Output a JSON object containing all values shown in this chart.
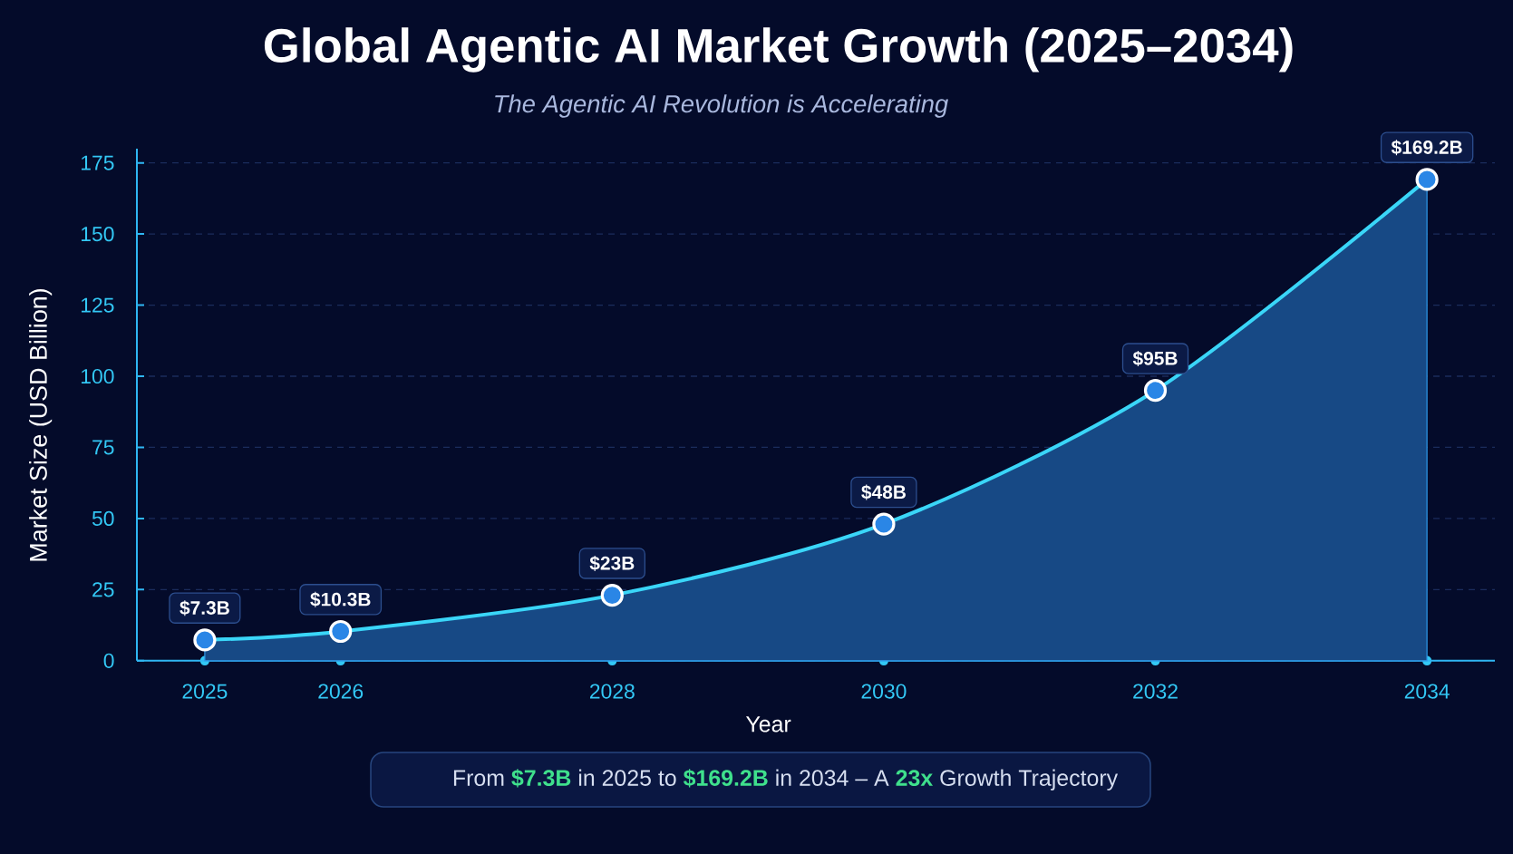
{
  "chart_data": {
    "type": "area",
    "title": "Global Agentic AI Market Growth (2025–2034)",
    "subtitle": "The Agentic AI Revolution is Accelerating",
    "xlabel": "Year",
    "ylabel": "Market Size (USD Billion)",
    "x": [
      2025,
      2026,
      2028,
      2030,
      2032,
      2034
    ],
    "series": [
      {
        "color": "#3ad6f8",
        "values": [
          7.3,
          10.3,
          23,
          48,
          95,
          169.2
        ],
        "value_labels": [
          "$7.3B",
          "$10.3B",
          "$23B",
          "$48B",
          "$95B",
          "$169.2B"
        ]
      }
    ],
    "xlim": [
      2024.5,
      2034.5
    ],
    "xticks": [
      2025,
      2026,
      2028,
      2030,
      2032,
      2034
    ],
    "ylim": [
      0,
      180
    ],
    "yticks": [
      0,
      25,
      50,
      75,
      100,
      125,
      150,
      175
    ],
    "grid": "y",
    "marker": "circle",
    "line_style": "solid",
    "annotations": [
      "From **$7.3B** in 2025 to **$169.2B** in 2034 – A **23x** Growth Trajectory"
    ]
  }
}
